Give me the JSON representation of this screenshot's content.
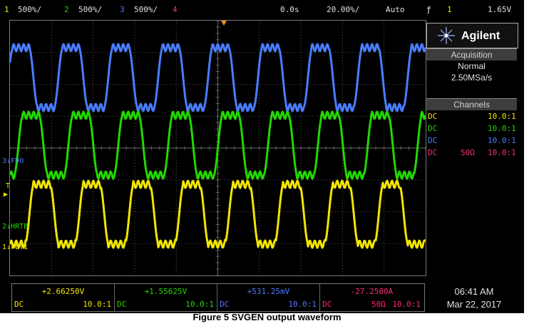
{
  "topbar": {
    "ch1_num": "1",
    "ch1_scale": "500%/",
    "ch2_num": "2",
    "ch2_scale": "500%/",
    "ch3_num": "3",
    "ch3_scale": "500%/",
    "ch4_num": "4",
    "time_pos": "0.0s",
    "timebase": "20.00%/",
    "mode": "Auto",
    "trigger_symbol": "ƒ",
    "trigger_channel": "1",
    "trigger_level": "1.65V"
  },
  "brand": {
    "name": "Agilent"
  },
  "acquisition": {
    "title": "Acquisition",
    "mode": "Normal",
    "rate": "2.50MSa/s"
  },
  "channels": {
    "title": "Channels",
    "rows": [
      {
        "coupling": "DC",
        "imp": "",
        "probe": "10.0:1",
        "color": "#f2e600"
      },
      {
        "coupling": "DC",
        "imp": "",
        "probe": "10.0:1",
        "color": "#22d800"
      },
      {
        "coupling": "DC",
        "imp": "",
        "probe": "10.0:1",
        "color": "#4a7dff"
      },
      {
        "coupling": "DC",
        "imp": "50Ω",
        "probe": "10.0:1",
        "color": "#ff2a7a"
      }
    ]
  },
  "markers": {
    "ch3_label": "FDO",
    "ch3_num": "3",
    "trig_label": "T",
    "ch2_label": "HRTB",
    "ch2_num": "2",
    "ch1_label": "FLT1",
    "ch1_num": "1"
  },
  "measurements": [
    {
      "value": "+2.66250V",
      "coupling": "DC",
      "probe": "10.0:1",
      "color": "#f2e600"
    },
    {
      "value": "+1.55625V",
      "coupling": "DC",
      "probe": "10.0:1",
      "color": "#22d800"
    },
    {
      "value": "+531.25mV",
      "coupling": "DC",
      "probe": "10.0:1",
      "color": "#4a7dff"
    },
    {
      "value": "-27.2500A",
      "coupling": "DC",
      "imp": "50Ω",
      "probe": "10.0:1",
      "color": "#ff2a7a"
    }
  ],
  "clock": {
    "time": "06:41 AM",
    "date": "Mar 22, 2017"
  },
  "caption": "Figure 5 SVGEN output waveform",
  "colors": {
    "ch1": "#f2e600",
    "ch2": "#22d800",
    "ch3": "#4a7dff",
    "ch4": "#ff2a7a",
    "grid": "#6a6a6a",
    "trigger": "#ff8c1a"
  }
}
